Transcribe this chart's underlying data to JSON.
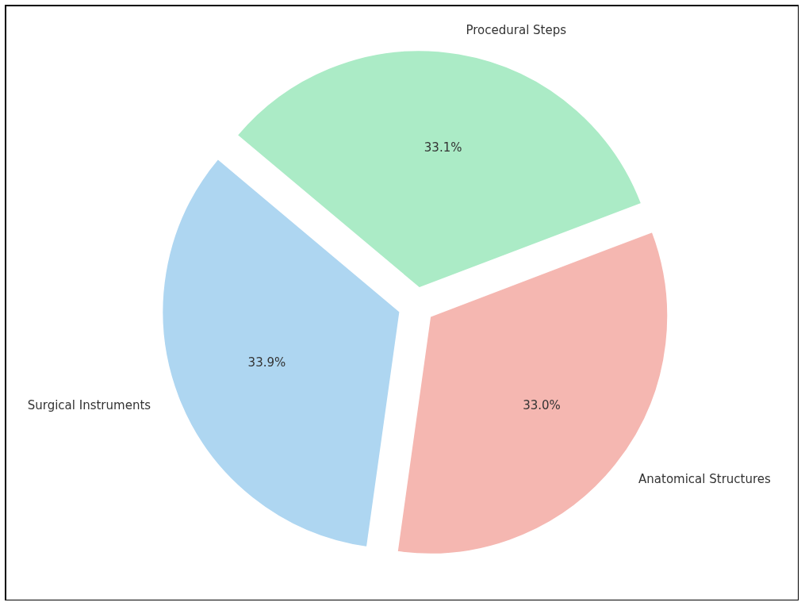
{
  "chart_data": {
    "type": "pie",
    "categories": [
      "Surgical Instruments",
      "Anatomical Structures",
      "Procedural Steps"
    ],
    "values": [
      33.9,
      33.0,
      33.1
    ],
    "value_labels": [
      "33.9%",
      "33.0%",
      "33.1%"
    ],
    "colors": [
      "#aed6f1",
      "#f5b7b1",
      "#abebc6"
    ]
  }
}
